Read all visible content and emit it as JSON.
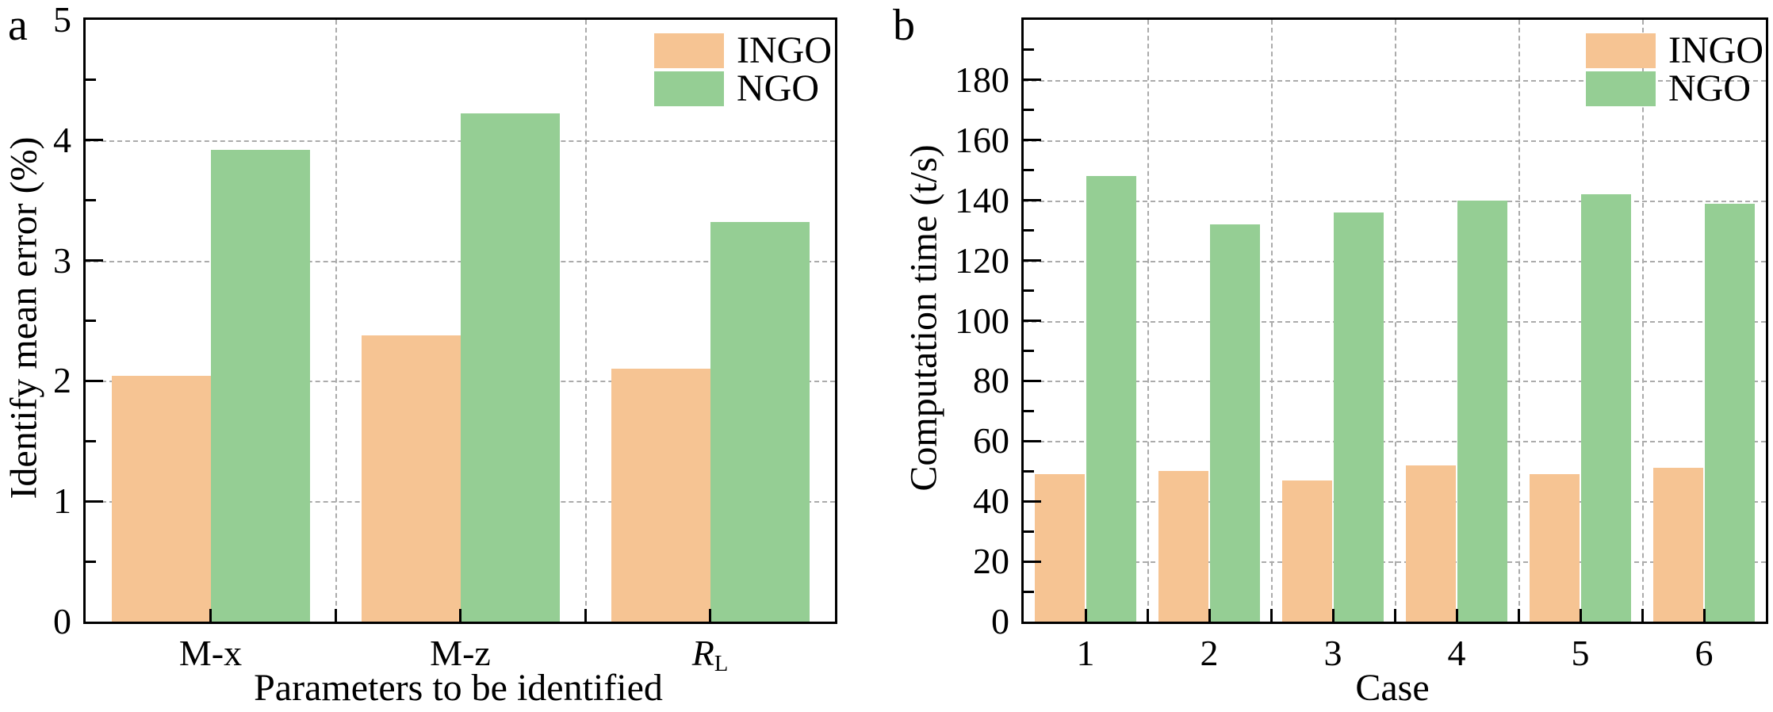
{
  "figure": {
    "panels": [
      {
        "letter": "a"
      },
      {
        "letter": "b"
      }
    ]
  },
  "colors": {
    "ingo": "#F6C493",
    "ngo": "#95CE94",
    "grid": "#ABABAB",
    "axis": "#000000"
  },
  "chart_data": [
    {
      "type": "bar",
      "categories": [
        "M-x",
        "M-z",
        "R_L"
      ],
      "series": [
        {
          "name": "INGO",
          "color": "#F6C493",
          "values": [
            2.04,
            2.38,
            2.1
          ]
        },
        {
          "name": "NGO",
          "color": "#95CE94",
          "values": [
            3.92,
            4.22,
            3.32
          ]
        }
      ],
      "title": "",
      "xlabel": "Parameters to be identified",
      "ylabel": "Identify mean error (%)",
      "ylim": [
        0,
        5
      ],
      "ytick_step": 1,
      "yminor_step": 0.5,
      "ymax_labeled_tick": 5,
      "grid": "dashed",
      "legend_position": "top-right",
      "legend_labels": [
        "INGO",
        "NGO"
      ]
    },
    {
      "type": "bar",
      "categories": [
        "1",
        "2",
        "3",
        "4",
        "5",
        "6"
      ],
      "series": [
        {
          "name": "INGO",
          "color": "#F6C493",
          "values": [
            49,
            50,
            47,
            52,
            49,
            51
          ]
        },
        {
          "name": "NGO",
          "color": "#95CE94",
          "values": [
            148,
            132,
            136,
            140,
            142,
            139
          ]
        }
      ],
      "title": "",
      "xlabel": "Case",
      "ylabel": "Computation time (t/s)",
      "ylim": [
        0,
        200
      ],
      "ytick_step": 20,
      "yminor_step": 10,
      "ymax_labeled_tick": 180,
      "grid": "dashed",
      "legend_position": "top-right",
      "legend_labels": [
        "INGO",
        "NGO"
      ]
    }
  ]
}
